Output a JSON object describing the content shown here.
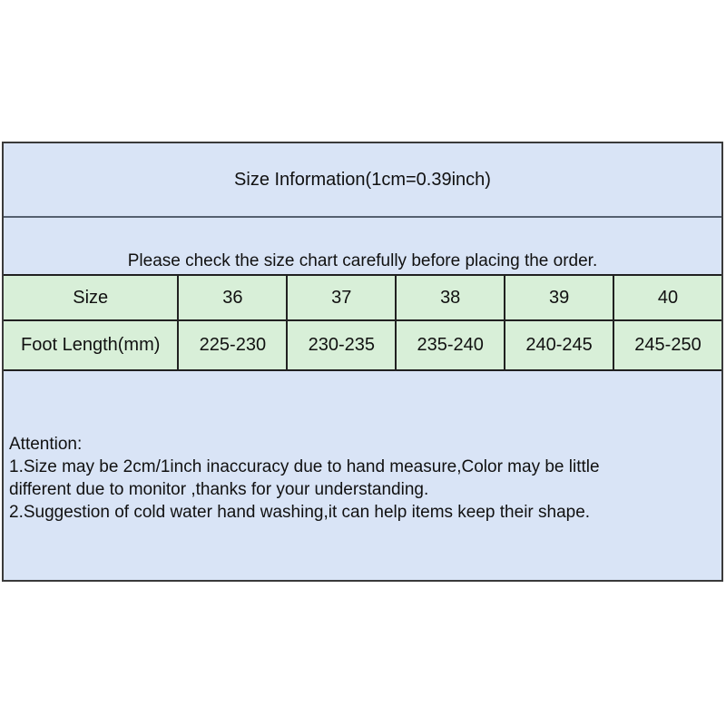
{
  "header": {
    "title": "Size Information(1cm=0.39inch)"
  },
  "note": {
    "text": "Please check the size chart carefully before placing the order."
  },
  "size_table": {
    "rows": [
      {
        "label": "Size",
        "values": [
          "36",
          "37",
          "38",
          "39",
          "40"
        ]
      },
      {
        "label": "Foot Length(mm)",
        "values": [
          "225-230",
          "230-235",
          "235-240",
          "240-245",
          "245-250"
        ]
      }
    ]
  },
  "attention": {
    "lines": [
      "Attention:",
      "1.Size may be 2cm/1inch inaccuracy due to hand measure,Color may be little",
      "different due to monitor ,thanks for your understanding.",
      "2.Suggestion of cold water hand washing,it can help items keep their shape."
    ]
  },
  "colors": {
    "band_blue": "#d9e4f6",
    "row_green": "#d8efd8",
    "border_outer": "#3a3a3a",
    "border_cell": "#212121",
    "divider_gray": "#556070",
    "text": "#111111"
  }
}
